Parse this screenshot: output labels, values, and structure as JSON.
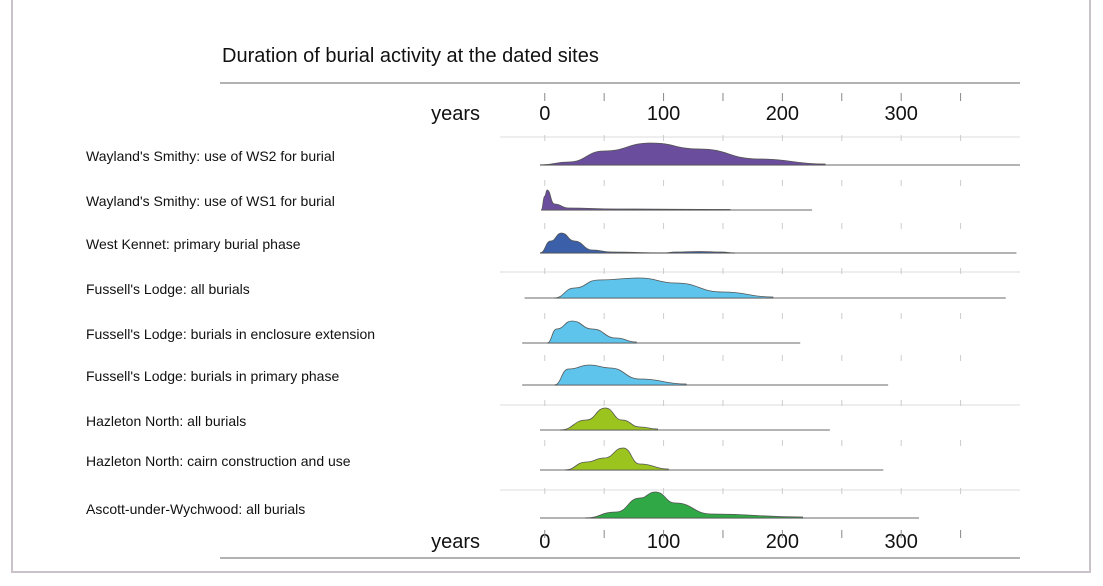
{
  "chart_data": {
    "type": "ridgeline",
    "title": "Duration of burial activity at the dated sites",
    "x_label_top": "years",
    "x_label_bottom": "years",
    "xlim": [
      -20,
      400
    ],
    "xticks": [
      0,
      100,
      200,
      300
    ],
    "minor_xticks": [
      0,
      50,
      100,
      150,
      200,
      250,
      300,
      350
    ],
    "series": [
      {
        "name": "Wayland's Smithy: use of WS2 for burial",
        "color": "#6b4d9e",
        "range": [
          -4,
          400
        ],
        "x": [
          -4,
          20,
          50,
          89,
          130,
          180,
          236
        ],
        "values": [
          0,
          3,
          14,
          22,
          16,
          6,
          1
        ]
      },
      {
        "name": "Wayland's Smithy: use of WS1 for burial",
        "color": "#6b4d9e",
        "range": [
          -3,
          225
        ],
        "x": [
          -3,
          0,
          2,
          8,
          20,
          60,
          156
        ],
        "values": [
          0,
          14,
          20,
          6,
          2,
          1,
          0.5
        ]
      },
      {
        "name": "West Kennet: primary burial phase",
        "color": "#3b5fa9",
        "range": [
          -4,
          397
        ],
        "x": [
          -4,
          5,
          14,
          25,
          40,
          56,
          100,
          110,
          130,
          149,
          160
        ],
        "values": [
          0,
          12,
          20,
          12,
          3,
          1,
          0,
          1,
          1.5,
          1,
          0
        ]
      },
      {
        "name": "Fussell's Lodge: all burials",
        "color": "#5ec4ec",
        "range": [
          -17,
          388
        ],
        "x": [
          8,
          25,
          45,
          80,
          110,
          150,
          192
        ],
        "values": [
          0,
          10,
          18,
          20,
          15,
          6,
          1
        ]
      },
      {
        "name": "Fussell's Lodge: burials in enclosure extension",
        "color": "#5ec4ec",
        "range": [
          -19,
          215
        ],
        "x": [
          2,
          10,
          23,
          40,
          60,
          77
        ],
        "values": [
          0,
          14,
          22,
          14,
          5,
          1
        ]
      },
      {
        "name": "Fussell's Lodge: burials in primary phase",
        "color": "#5ec4ec",
        "range": [
          -19,
          289
        ],
        "x": [
          8,
          20,
          38,
          55,
          80,
          119
        ],
        "values": [
          0,
          16,
          20,
          17,
          6,
          1
        ]
      },
      {
        "name": "Hazleton North: all burials",
        "color": "#9cc41f",
        "range": [
          -4,
          240
        ],
        "x": [
          13,
          35,
          51,
          65,
          80,
          95
        ],
        "values": [
          0,
          10,
          22,
          10,
          3,
          1
        ]
      },
      {
        "name": "Hazleton North: cairn construction and use",
        "color": "#9cc41f",
        "range": [
          -4,
          285
        ],
        "x": [
          17,
          35,
          50,
          66,
          80,
          104
        ],
        "values": [
          0,
          8,
          12,
          22,
          6,
          1
        ]
      },
      {
        "name": "Ascott-under-Wychwood:  all burials",
        "color": "#2fa845",
        "range": [
          -4,
          315
        ],
        "x": [
          34,
          60,
          80,
          93,
          110,
          140,
          217
        ],
        "values": [
          0,
          6,
          20,
          26,
          15,
          4,
          1
        ]
      }
    ]
  }
}
